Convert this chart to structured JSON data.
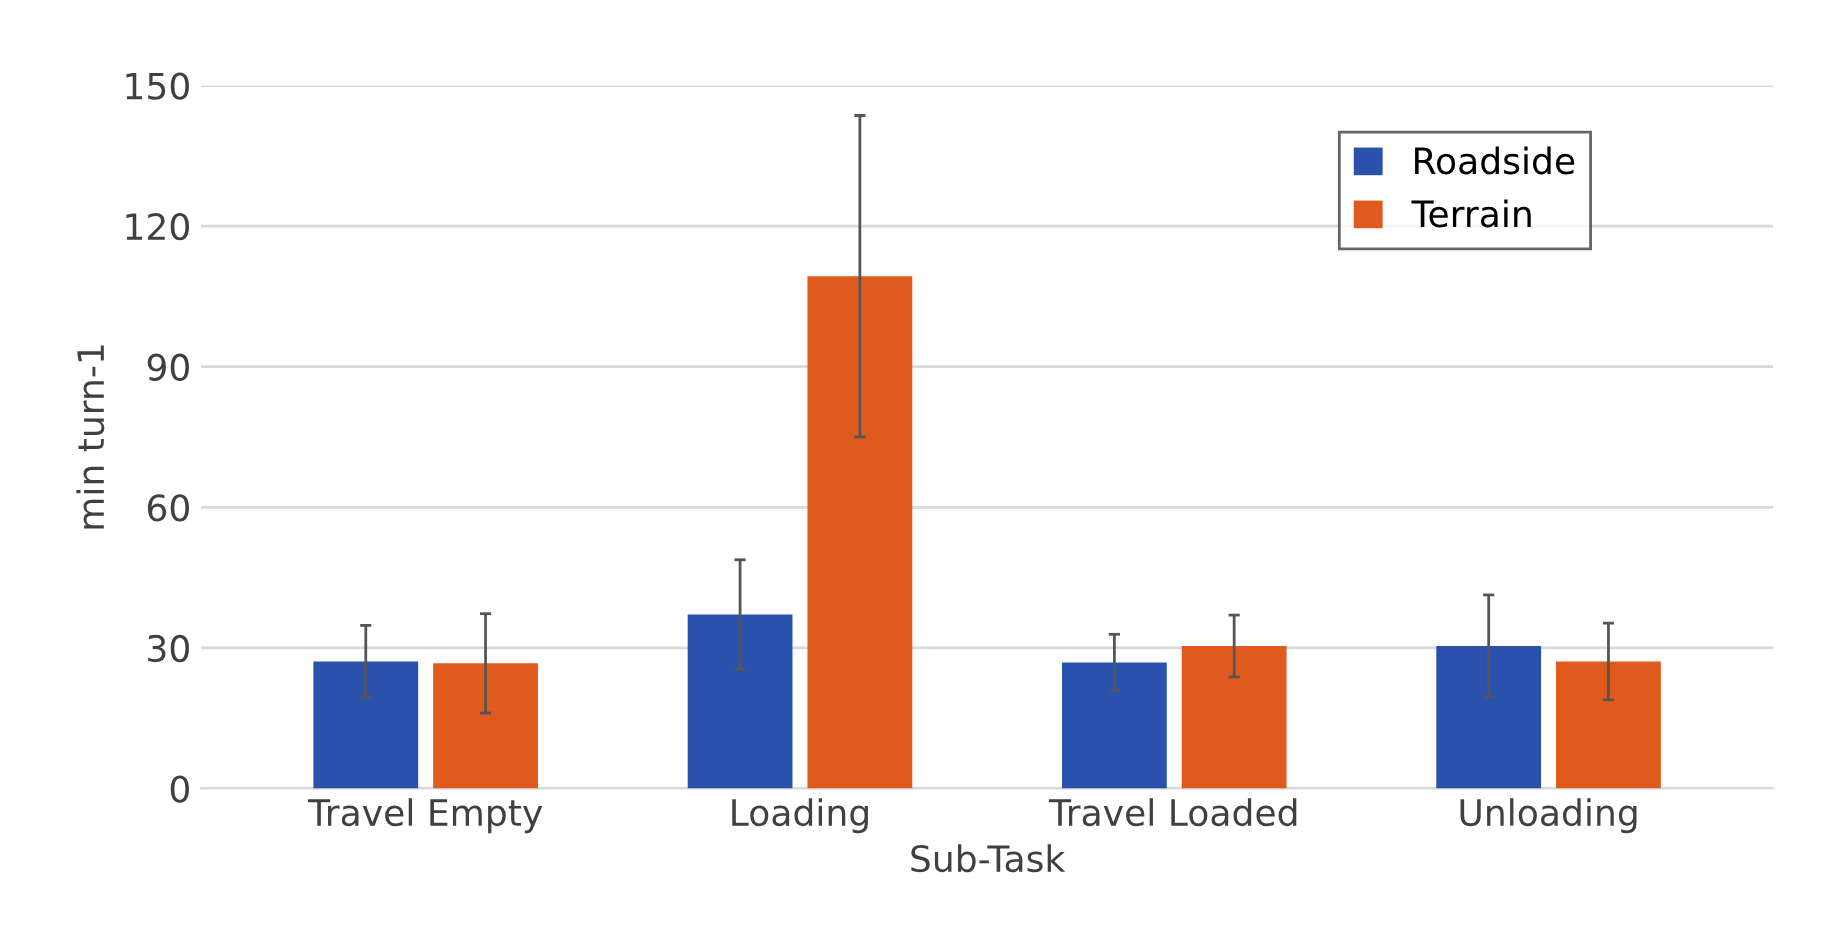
{
  "chart_data": {
    "type": "bar",
    "xlabel": "Sub-Task",
    "ylabel": "min turn-1",
    "categories": [
      "Travel Empty",
      "Loading",
      "Travel Loaded",
      "Unloading"
    ],
    "series": [
      {
        "name": "Roadside",
        "color": "#2a52ad",
        "values": [
          27.1,
          37.1,
          26.9,
          30.4
        ],
        "errors": [
          7.7,
          11.7,
          6.0,
          10.9
        ]
      },
      {
        "name": "Terrain",
        "color": "#e05a1d",
        "values": [
          26.7,
          109.3,
          30.4,
          27.1
        ],
        "errors": [
          10.6,
          34.3,
          6.6,
          8.2
        ]
      }
    ],
    "ylim": [
      0,
      150
    ],
    "yticks": [
      0,
      30,
      60,
      90,
      120,
      150
    ],
    "grid": "y",
    "legend": "top right"
  }
}
